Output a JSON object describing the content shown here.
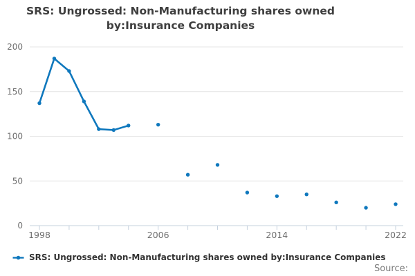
{
  "header": {
    "title_line1": "SRS: Ungrossed: Non-Manufacturing shares owned",
    "title_line2": "by:Insurance Companies"
  },
  "chart_data": {
    "type": "line",
    "title": "SRS: Ungrossed: Non-Manufacturing shares owned by:Insurance Companies",
    "xlabel": "",
    "ylabel": "",
    "x_range": [
      1998,
      2022
    ],
    "ylim": [
      0,
      200
    ],
    "y_ticks": [
      0,
      50,
      100,
      150,
      200
    ],
    "x_tick_step_years": 2,
    "x_axis_labels": [
      "1998",
      "2006",
      "2014",
      "2022"
    ],
    "grid": "horizontal",
    "legend_position": "bottom-left",
    "series": [
      {
        "name": "connected-segment",
        "style": "line+markers",
        "points": [
          [
            1998,
            137
          ],
          [
            1999,
            187
          ],
          [
            2000,
            173
          ],
          [
            2001,
            139
          ],
          [
            2002,
            108
          ],
          [
            2003,
            107
          ],
          [
            2004,
            112
          ]
        ]
      },
      {
        "name": "isolated-markers-segment",
        "style": "markers",
        "points": [
          [
            2006,
            113
          ],
          [
            2008,
            57
          ],
          [
            2010,
            68
          ],
          [
            2012,
            37
          ],
          [
            2014,
            33
          ],
          [
            2016,
            35
          ],
          [
            2018,
            26
          ],
          [
            2020,
            20
          ],
          [
            2022,
            24
          ]
        ]
      }
    ]
  },
  "legend": {
    "label": "SRS: Ungrossed: Non-Manufacturing shares owned by:Insurance Companies"
  },
  "footer": {
    "source_label": "Source:"
  },
  "colors": {
    "series": "#0f78bd",
    "title_text": "#3f3f3f",
    "axis_text": "#6e6e6e",
    "grid_line": "#e4e4e4",
    "axis_line": "#c5d1de",
    "legend_text": "#333333",
    "source_text": "#7b7b7b"
  }
}
